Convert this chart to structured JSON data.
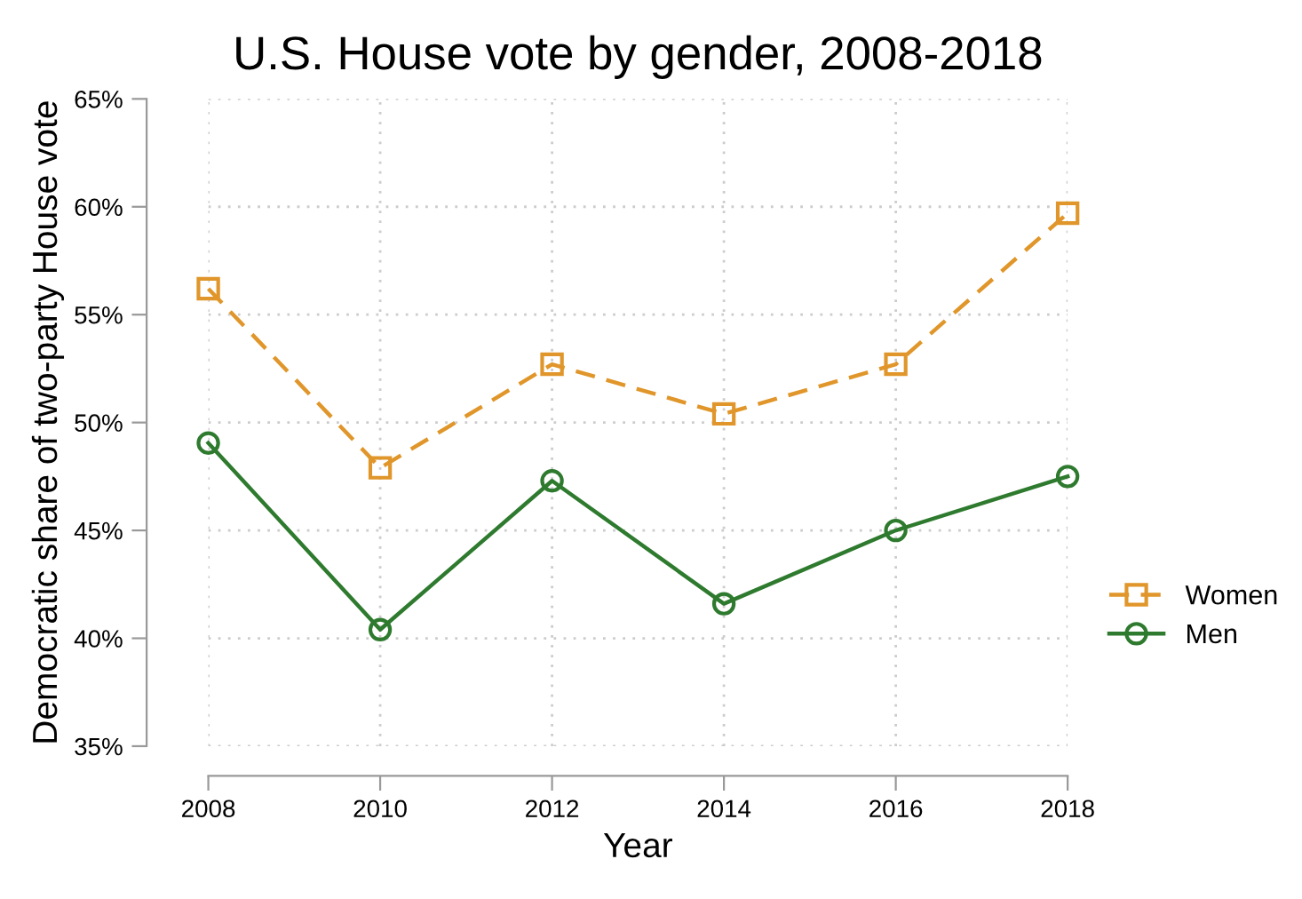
{
  "chart_data": {
    "type": "line",
    "title": "U.S. House vote by gender, 2008-2018",
    "xlabel": "Year",
    "ylabel": "Democratic share of two-party House vote",
    "x": [
      2008,
      2010,
      2012,
      2014,
      2016,
      2018
    ],
    "series": [
      {
        "name": "Women",
        "color": "#e0962a",
        "marker": "square",
        "line_style": "dashed",
        "values": [
          56.2,
          47.9,
          52.7,
          50.4,
          52.7,
          59.7
        ]
      },
      {
        "name": "Men",
        "color": "#2e7a2e",
        "marker": "circle",
        "line_style": "solid",
        "values": [
          49.05,
          40.4,
          47.3,
          41.6,
          45.0,
          47.5
        ]
      }
    ],
    "xlim": [
      2008,
      2018
    ],
    "xticks": [
      2008,
      2010,
      2012,
      2014,
      2016,
      2018
    ],
    "ylim": [
      35,
      65
    ],
    "yticks": [
      {
        "value": 35,
        "label": "35%"
      },
      {
        "value": 40,
        "label": "40%"
      },
      {
        "value": 45,
        "label": "45%"
      },
      {
        "value": 50,
        "label": "50%"
      },
      {
        "value": 55,
        "label": "55%"
      },
      {
        "value": 60,
        "label": "60%"
      },
      {
        "value": 65,
        "label": "65%"
      }
    ],
    "grid": true,
    "legend": "right"
  }
}
